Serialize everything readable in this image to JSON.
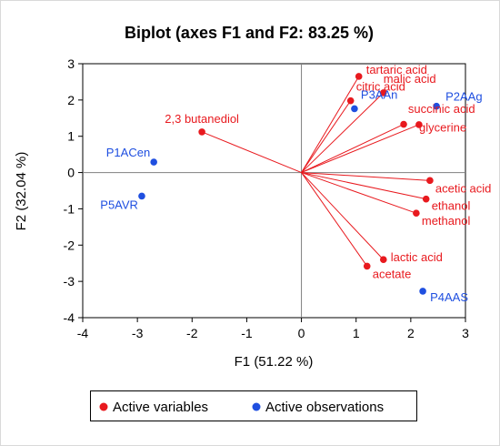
{
  "chart_data": {
    "type": "scatter",
    "title": "Biplot (axes F1 and F2: 83.25 %)",
    "xlabel": "F1 (51.22 %)",
    "ylabel": "F2 (32.04 %)",
    "xlim": [
      -4,
      3
    ],
    "ylim": [
      -4,
      3
    ],
    "xticks": [
      "-4",
      "-3",
      "-2",
      "-1",
      "0",
      "1",
      "2",
      "3"
    ],
    "yticks": [
      "-4",
      "-3",
      "-2",
      "-1",
      "0",
      "1",
      "2",
      "3"
    ],
    "grid": false,
    "legend_position": "bottom",
    "colors": {
      "variables": "#e8191e",
      "observations": "#1f4fe0",
      "axis": "#000000",
      "zero_lines": "#7f7f7f"
    },
    "series": [
      {
        "name": "Active variables",
        "vectors_from_origin": true,
        "points": [
          {
            "label": "tartaric acid",
            "x": 1.05,
            "y": 2.65
          },
          {
            "label": "malic acid",
            "x": 1.5,
            "y": 2.2
          },
          {
            "label": "citric acid",
            "x": 0.9,
            "y": 1.98
          },
          {
            "label": "succinic acid",
            "x": 2.15,
            "y": 1.32
          },
          {
            "label": "glycerine",
            "x": 1.87,
            "y": 1.33
          },
          {
            "label": "2,3 butanediol",
            "x": -1.82,
            "y": 1.12
          },
          {
            "label": "acetic acid",
            "x": 2.35,
            "y": -0.22
          },
          {
            "label": "ethanol",
            "x": 2.28,
            "y": -0.73
          },
          {
            "label": "methanol",
            "x": 2.1,
            "y": -1.12
          },
          {
            "label": "lactic acid",
            "x": 1.5,
            "y": -2.4
          },
          {
            "label": "acetate",
            "x": 1.2,
            "y": -2.58
          }
        ]
      },
      {
        "name": "Active observations",
        "points": [
          {
            "label": "P2AAg",
            "x": 2.47,
            "y": 1.83
          },
          {
            "label": "P3AAn",
            "x": 0.97,
            "y": 1.76
          },
          {
            "label": "P1ACen",
            "x": -2.7,
            "y": 0.29
          },
          {
            "label": "P5AVR",
            "x": -2.92,
            "y": -0.65
          },
          {
            "label": "P4AAS",
            "x": 2.22,
            "y": -3.27
          }
        ]
      }
    ]
  }
}
